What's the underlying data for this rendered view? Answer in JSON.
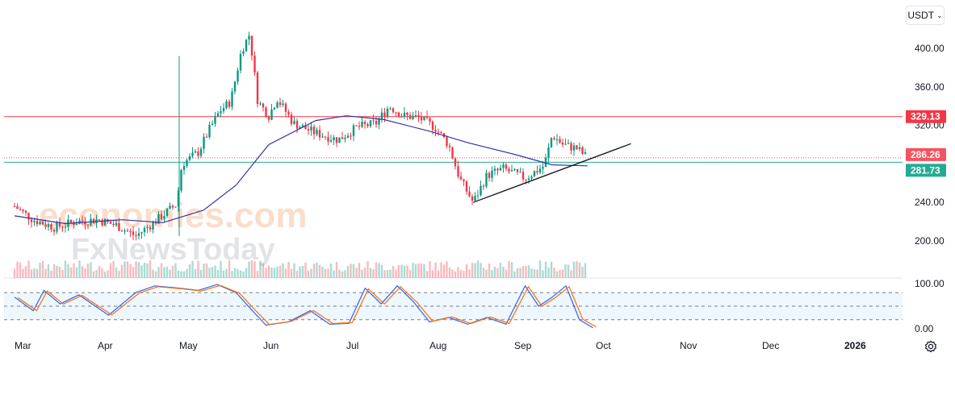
{
  "currency": {
    "label": "USDT",
    "chevron_icon": "chevron-down-icon"
  },
  "settings": {
    "icon": "gear-icon"
  },
  "watermark": {
    "line1": "economies.com",
    "line2": "FxNewsToday"
  },
  "price_badges": [
    {
      "name": "resistance-badge",
      "label": "329.13",
      "color": "#f23645"
    },
    {
      "name": "current-price-badge",
      "label": "286.26",
      "color": "#f7525f"
    },
    {
      "name": "support-badge",
      "label": "281.73",
      "color": "#22ab94"
    }
  ],
  "chart_data": [
    {
      "type": "candlestick",
      "yaxis": {
        "ticks": [
          "400.00",
          "360.00",
          "320.00",
          "240.00",
          "200.00"
        ],
        "range": [
          182,
          422
        ]
      },
      "xaxis": {
        "ticks": [
          "Mar",
          "Apr",
          "May",
          "Jun",
          "Jul",
          "Aug",
          "Sep",
          "Oct",
          "Nov",
          "Dec",
          "2026"
        ]
      },
      "close_path": [
        [
          "Mar 1",
          236
        ],
        [
          "Mar 8",
          222
        ],
        [
          "Mar 16",
          214
        ],
        [
          "Mar 24",
          220
        ],
        [
          "Apr 1",
          222
        ],
        [
          "Apr 8",
          216
        ],
        [
          "Apr 15",
          205
        ],
        [
          "Apr 22",
          220
        ],
        [
          "Apr 30",
          238
        ],
        [
          "May 2",
          280
        ],
        [
          "May 8",
          292
        ],
        [
          "May 12",
          315
        ],
        [
          "May 16",
          335
        ],
        [
          "May 20",
          345
        ],
        [
          "May 24",
          398
        ],
        [
          "May 27",
          415
        ],
        [
          "May 30",
          345
        ],
        [
          "Jun 3",
          330
        ],
        [
          "Jun 6",
          348
        ],
        [
          "Jun 12",
          322
        ],
        [
          "Jun 20",
          312
        ],
        [
          "Jun 28",
          305
        ],
        [
          "Jul 5",
          318
        ],
        [
          "Jul 12",
          322
        ],
        [
          "Jul 17",
          340
        ],
        [
          "Jul 22",
          330
        ],
        [
          "Jul 28",
          328
        ],
        [
          "Aug 3",
          318
        ],
        [
          "Aug 8",
          300
        ],
        [
          "Aug 12",
          265
        ],
        [
          "Aug 17",
          240
        ],
        [
          "Aug 22",
          268
        ],
        [
          "Aug 28",
          275
        ],
        [
          "Sep 5",
          265
        ],
        [
          "Sep 12",
          278
        ],
        [
          "Sep 15",
          310
        ],
        [
          "Sep 19",
          300
        ],
        [
          "Sep 24",
          296
        ],
        [
          "Sep 28",
          286.26
        ]
      ],
      "moving_average": [
        [
          "Mar 1",
          226
        ],
        [
          "Mar 20",
          218
        ],
        [
          "Apr 10",
          222
        ],
        [
          "Apr 25",
          219
        ],
        [
          "May 10",
          232
        ],
        [
          "May 22",
          258
        ],
        [
          "Jun 3",
          300
        ],
        [
          "Jun 20",
          325
        ],
        [
          "Jul 1",
          330
        ],
        [
          "Jul 15",
          326
        ],
        [
          "Aug 1",
          314
        ],
        [
          "Aug 15",
          302
        ],
        [
          "Sep 1",
          290
        ],
        [
          "Sep 15",
          279
        ],
        [
          "Sep 28",
          278
        ]
      ],
      "horizontal_levels": [
        {
          "name": "resistance",
          "value": 329.13,
          "color": "#f23645"
        },
        {
          "name": "current",
          "value": 286.26,
          "color": "#f7525f"
        },
        {
          "name": "support",
          "value": 281.73,
          "color": "#22ab94"
        }
      ],
      "trendline": [
        [
          "Aug 17",
          240
        ],
        [
          "Oct 14",
          301
        ]
      ]
    },
    {
      "type": "line",
      "name_hint": "stochastic oscillator",
      "yaxis": {
        "ticks": [
          "100.00",
          "0.00"
        ],
        "range": [
          -5,
          105
        ],
        "band": [
          20,
          80
        ]
      },
      "series_k": [
        [
          "Mar 1",
          70
        ],
        [
          "Mar 8",
          40
        ],
        [
          "Mar 12",
          85
        ],
        [
          "Mar 18",
          55
        ],
        [
          "Mar 25",
          75
        ],
        [
          "Apr 5",
          30
        ],
        [
          "Apr 15",
          80
        ],
        [
          "Apr 22",
          95
        ],
        [
          "May 1",
          90
        ],
        [
          "May 8",
          85
        ],
        [
          "May 15",
          98
        ],
        [
          "May 22",
          80
        ],
        [
          "May 28",
          40
        ],
        [
          "Jun 2",
          8
        ],
        [
          "Jun 10",
          15
        ],
        [
          "Jun 18",
          40
        ],
        [
          "Jun 25",
          10
        ],
        [
          "Jul 2",
          12
        ],
        [
          "Jul 8",
          90
        ],
        [
          "Jul 14",
          55
        ],
        [
          "Jul 20",
          95
        ],
        [
          "Jul 26",
          60
        ],
        [
          "Aug 1",
          15
        ],
        [
          "Aug 8",
          25
        ],
        [
          "Aug 15",
          10
        ],
        [
          "Aug 22",
          25
        ],
        [
          "Aug 29",
          10
        ],
        [
          "Sep 5",
          95
        ],
        [
          "Sep 10",
          50
        ],
        [
          "Sep 15",
          70
        ],
        [
          "Sep 20",
          95
        ],
        [
          "Sep 25",
          20
        ],
        [
          "Sep 30",
          2
        ]
      ]
    }
  ]
}
